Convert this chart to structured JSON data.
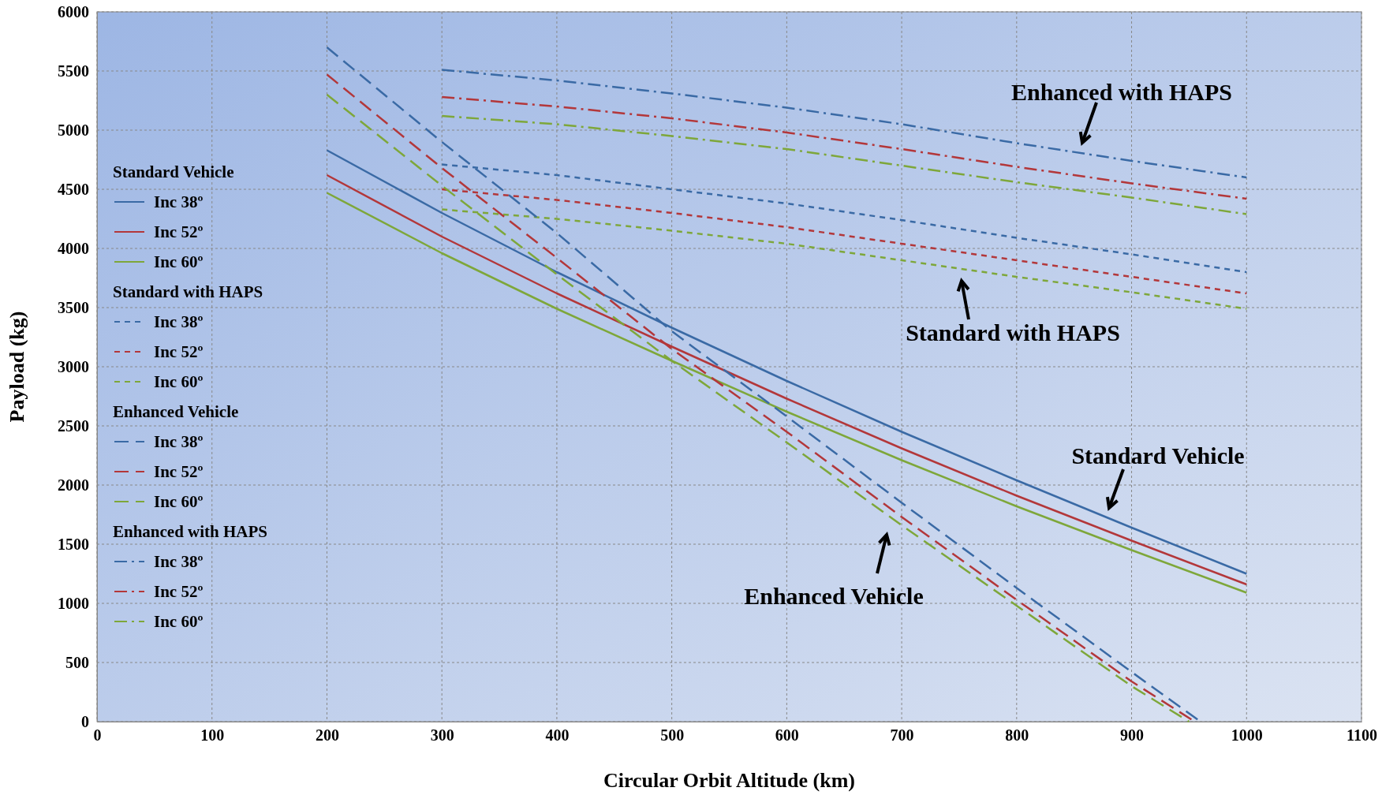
{
  "chart_data": {
    "type": "line",
    "xlabel": "Circular Orbit Altitude (km)",
    "ylabel": "Payload (kg)",
    "xlim": [
      0,
      1100
    ],
    "xticks": [
      0,
      100,
      200,
      300,
      400,
      500,
      600,
      700,
      800,
      900,
      1000,
      1100
    ],
    "ylim": [
      0,
      6000
    ],
    "yticks": [
      0,
      500,
      1000,
      1500,
      2000,
      2500,
      3000,
      3500,
      4000,
      4500,
      5000,
      5500,
      6000
    ],
    "grid": true,
    "legend": "left",
    "marker": "none",
    "annotations": [
      "Standard Vehicle",
      "Standard with HAPS",
      "Enhanced Vehicle",
      "Enhanced with HAPS",
      "Enhanced with HAPS",
      "Standard with HAPS",
      "Standard Vehicle",
      "Enhanced Vehicle"
    ],
    "series": [
      {
        "name": "Inc 38º",
        "color": "#3a6aa5",
        "line_style": "solid",
        "x": [
          200,
          300,
          400,
          500,
          600,
          700,
          800,
          900,
          1000
        ],
        "values": [
          4830,
          4300,
          3800,
          3330,
          2880,
          2450,
          2040,
          1640,
          1250
        ]
      },
      {
        "name": "Inc 52º",
        "color": "#b3373a",
        "line_style": "solid",
        "x": [
          200,
          300,
          400,
          500,
          600,
          700,
          800,
          900,
          1000
        ],
        "values": [
          4620,
          4100,
          3620,
          3170,
          2730,
          2310,
          1910,
          1530,
          1160
        ]
      },
      {
        "name": "Inc 60º",
        "color": "#7ea73a",
        "line_style": "solid",
        "x": [
          200,
          300,
          400,
          500,
          600,
          700,
          800,
          900,
          1000
        ],
        "values": [
          4470,
          3960,
          3490,
          3050,
          2620,
          2210,
          1820,
          1450,
          1090
        ]
      },
      {
        "name": "Inc 38º",
        "color": "#3a6aa5",
        "line_style": "dashed",
        "x": [
          300,
          400,
          500,
          600,
          700,
          800,
          900,
          1000
        ],
        "values": [
          4710,
          4620,
          4500,
          4380,
          4240,
          4090,
          3950,
          3800
        ]
      },
      {
        "name": "Inc 52º",
        "color": "#b3373a",
        "line_style": "dashed",
        "x": [
          300,
          400,
          500,
          600,
          700,
          800,
          900,
          1000
        ],
        "values": [
          4500,
          4410,
          4300,
          4180,
          4040,
          3900,
          3760,
          3620
        ]
      },
      {
        "name": "Inc 60º",
        "color": "#7ea73a",
        "line_style": "dashed",
        "x": [
          300,
          400,
          500,
          600,
          700,
          800,
          900,
          1000
        ],
        "values": [
          4330,
          4250,
          4150,
          4040,
          3900,
          3760,
          3630,
          3490
        ]
      },
      {
        "name": "Inc 38º",
        "color": "#3a6aa5",
        "line_style": "longdash",
        "x": [
          200,
          300,
          400,
          500,
          600,
          700,
          800,
          900,
          960
        ],
        "values": [
          5700,
          4900,
          4130,
          3300,
          2580,
          1850,
          1130,
          420,
          0
        ]
      },
      {
        "name": "Inc 52º",
        "color": "#b3373a",
        "line_style": "longdash",
        "x": [
          200,
          300,
          400,
          500,
          600,
          700,
          800,
          900,
          955
        ],
        "values": [
          5470,
          4680,
          3920,
          3150,
          2450,
          1730,
          1030,
          340,
          0
        ]
      },
      {
        "name": "Inc 60º",
        "color": "#7ea73a",
        "line_style": "longdash",
        "x": [
          200,
          300,
          400,
          500,
          600,
          700,
          800,
          900,
          950
        ],
        "values": [
          5300,
          4530,
          3780,
          3050,
          2360,
          1660,
          980,
          300,
          0
        ]
      },
      {
        "name": "Inc 38º",
        "color": "#3a6aa5",
        "line_style": "dashdot",
        "x": [
          300,
          400,
          500,
          600,
          700,
          800,
          900,
          1000
        ],
        "values": [
          5510,
          5420,
          5310,
          5190,
          5050,
          4890,
          4740,
          4600
        ]
      },
      {
        "name": "Inc 52º",
        "color": "#b3373a",
        "line_style": "dashdot",
        "x": [
          300,
          400,
          500,
          600,
          700,
          800,
          900,
          1000
        ],
        "values": [
          5280,
          5200,
          5100,
          4980,
          4840,
          4690,
          4550,
          4420
        ]
      },
      {
        "name": "Inc 60º",
        "color": "#7ea73a",
        "line_style": "dashdot",
        "x": [
          300,
          400,
          500,
          600,
          700,
          800,
          900,
          1000
        ],
        "values": [
          5120,
          5050,
          4950,
          4840,
          4700,
          4560,
          4430,
          4290
        ]
      }
    ]
  }
}
